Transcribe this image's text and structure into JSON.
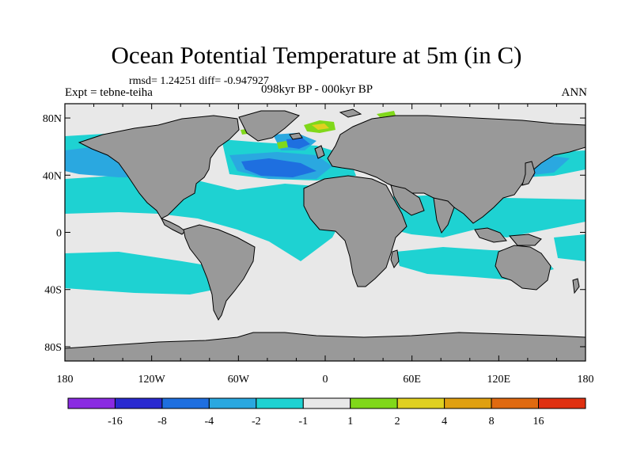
{
  "title": "Ocean Potential Temperature at 5m (in C)",
  "stats": "rmsd= 1.24251 diff= -0.947927",
  "experiment": "Expt = tebne-teiha",
  "period": "098kyr BP - 000kyr BP",
  "season": "ANN",
  "colors": {
    "land": "#999999",
    "neutral": "#e8e8e8",
    "cyan": "#1ed2d2",
    "lightblue": "#2aa8e0",
    "blue": "#1e6fe0",
    "green": "#80d81a",
    "yellow": "#e0d020"
  },
  "map": {
    "projection": "cylindrical equidistant",
    "lon_range": [
      -180,
      180
    ],
    "lat_range": [
      -90,
      90
    ]
  },
  "axes": {
    "x_ticks": [
      {
        "value": -180,
        "label": "180"
      },
      {
        "value": -120,
        "label": "120W"
      },
      {
        "value": -60,
        "label": "60W"
      },
      {
        "value": 0,
        "label": "0"
      },
      {
        "value": 60,
        "label": "60E"
      },
      {
        "value": 120,
        "label": "120E"
      },
      {
        "value": 180,
        "label": "180"
      }
    ],
    "y_ticks": [
      {
        "value": 80,
        "label": "80N"
      },
      {
        "value": 40,
        "label": "40N"
      },
      {
        "value": 0,
        "label": "0"
      },
      {
        "value": -40,
        "label": "40S"
      },
      {
        "value": -80,
        "label": "80S"
      }
    ]
  },
  "colorbar": {
    "colors": [
      "#8a2be2",
      "#2a2ad0",
      "#1e6fe0",
      "#2aa8e0",
      "#1ed2d2",
      "#e8e8e8",
      "#80d81a",
      "#e0d020",
      "#e0a010",
      "#e06a10",
      "#e03010"
    ],
    "labels": [
      "-16",
      "-8",
      "-4",
      "-2",
      "-1",
      "1",
      "2",
      "4",
      "8",
      "16"
    ]
  }
}
